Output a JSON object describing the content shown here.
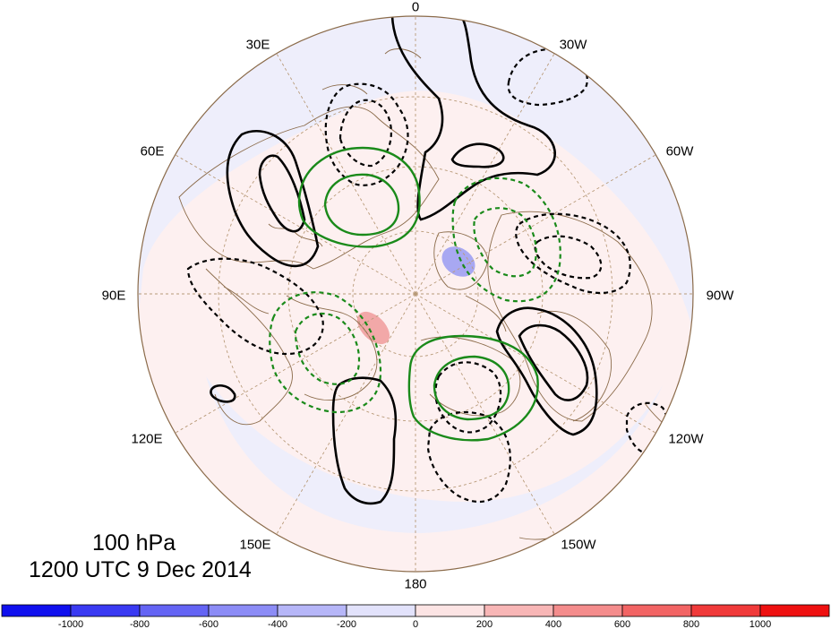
{
  "map": {
    "projection": "north-polar-stereographic",
    "longitude_labels": [
      {
        "text": "0",
        "lon": 0
      },
      {
        "text": "30W",
        "lon": -30
      },
      {
        "text": "60W",
        "lon": -60
      },
      {
        "text": "90W",
        "lon": -90
      },
      {
        "text": "120W",
        "lon": -120
      },
      {
        "text": "150W",
        "lon": -150
      },
      {
        "text": "180",
        "lon": 180
      },
      {
        "text": "150E",
        "lon": 150
      },
      {
        "text": "120E",
        "lon": 120
      },
      {
        "text": "90E",
        "lon": 90
      },
      {
        "text": "60E",
        "lon": 60
      },
      {
        "text": "30E",
        "lon": 30
      }
    ],
    "level": "100 hPa",
    "valid_time": "1200 UTC 9 Dec 2014",
    "contour_colors": {
      "positive_black": "#000000",
      "anomaly_green": "#1a8a1a",
      "coastline": "#8b6b4a",
      "graticule": "#b89a78"
    }
  },
  "colorbar": {
    "tick_labels": [
      "-1000",
      "-800",
      "-600",
      "-400",
      "-200",
      "0",
      "200",
      "400",
      "600",
      "800",
      "1000"
    ],
    "colors": [
      "#1010ee",
      "#3a3af2",
      "#6464f4",
      "#8c8cf6",
      "#b6b6f8",
      "#e2e2fb",
      "#fce4e4",
      "#f8b6b6",
      "#f48c8c",
      "#f26464",
      "#f03a3a",
      "#ee1010"
    ]
  }
}
